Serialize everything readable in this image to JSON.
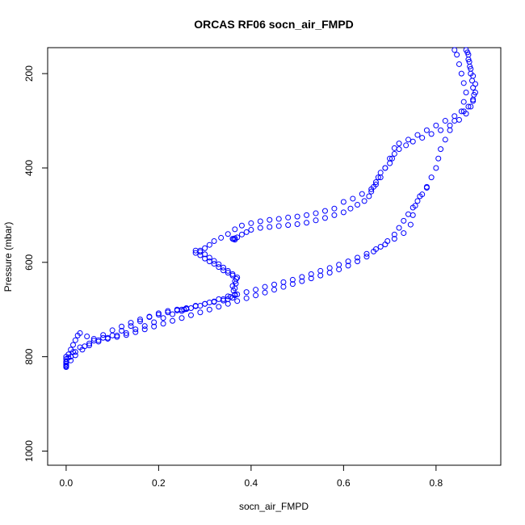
{
  "chart_data": {
    "type": "scatter",
    "title": "ORCAS RF06 socn_air_FMPD",
    "xlabel": "socn_air_FMPD",
    "ylabel": "Pressure (mbar)",
    "xlim": [
      -0.04,
      0.94
    ],
    "ylim": [
      1030,
      145
    ],
    "y_reversed": true,
    "x_ticks": [
      0.0,
      0.2,
      0.4,
      0.6,
      0.8
    ],
    "x_tick_labels": [
      "0.0",
      "0.2",
      "0.4",
      "0.6",
      "0.8"
    ],
    "y_ticks": [
      200,
      400,
      600,
      800,
      1000
    ],
    "y_tick_labels": [
      "200",
      "400",
      "600",
      "800",
      "1000"
    ],
    "grid": false,
    "marker": "open-circle",
    "color": "#0000ff",
    "series": [
      {
        "points": [
          [
            0.0,
            820
          ],
          [
            0.0,
            815
          ],
          [
            0.0,
            810
          ],
          [
            0.0,
            805
          ],
          [
            0.0,
            800
          ],
          [
            0.005,
            795
          ],
          [
            0.01,
            785
          ],
          [
            0.015,
            775
          ],
          [
            0.02,
            765
          ],
          [
            0.025,
            755
          ],
          [
            0.03,
            750
          ],
          [
            0.045,
            757
          ],
          [
            0.06,
            762
          ],
          [
            0.08,
            760
          ],
          [
            0.1,
            755
          ],
          [
            0.12,
            745
          ],
          [
            0.14,
            735
          ],
          [
            0.16,
            725
          ],
          [
            0.18,
            715
          ],
          [
            0.2,
            708
          ],
          [
            0.22,
            703
          ],
          [
            0.24,
            700
          ],
          [
            0.26,
            699
          ],
          [
            0.28,
            693
          ],
          [
            0.3,
            688
          ],
          [
            0.32,
            683
          ],
          [
            0.34,
            678
          ],
          [
            0.355,
            673
          ],
          [
            0.365,
            668
          ],
          [
            0.365,
            655
          ],
          [
            0.367,
            645
          ],
          [
            0.368,
            635
          ],
          [
            0.36,
            628
          ],
          [
            0.35,
            622
          ],
          [
            0.34,
            617
          ],
          [
            0.33,
            610
          ],
          [
            0.32,
            603
          ],
          [
            0.31,
            598
          ],
          [
            0.3,
            592
          ],
          [
            0.29,
            585
          ],
          [
            0.28,
            580
          ],
          [
            0.29,
            575
          ],
          [
            0.3,
            570
          ],
          [
            0.31,
            563
          ],
          [
            0.32,
            555
          ],
          [
            0.335,
            548
          ],
          [
            0.35,
            540
          ],
          [
            0.365,
            530
          ],
          [
            0.38,
            522
          ],
          [
            0.4,
            517
          ],
          [
            0.42,
            513
          ],
          [
            0.44,
            510
          ],
          [
            0.46,
            508
          ],
          [
            0.48,
            505
          ],
          [
            0.5,
            503
          ],
          [
            0.52,
            500
          ],
          [
            0.54,
            496
          ],
          [
            0.56,
            491
          ],
          [
            0.58,
            486
          ],
          [
            0.6,
            472
          ],
          [
            0.62,
            465
          ],
          [
            0.64,
            455
          ],
          [
            0.66,
            445
          ],
          [
            0.67,
            435
          ],
          [
            0.68,
            420
          ],
          [
            0.69,
            400
          ],
          [
            0.7,
            380
          ],
          [
            0.71,
            358
          ],
          [
            0.72,
            348
          ],
          [
            0.74,
            340
          ],
          [
            0.76,
            330
          ],
          [
            0.78,
            320
          ],
          [
            0.8,
            310
          ],
          [
            0.82,
            300
          ],
          [
            0.84,
            290
          ],
          [
            0.86,
            280
          ],
          [
            0.87,
            270
          ],
          [
            0.88,
            255
          ],
          [
            0.885,
            240
          ],
          [
            0.885,
            222
          ],
          [
            0.88,
            205
          ],
          [
            0.875,
            190
          ],
          [
            0.872,
            175
          ],
          [
            0.87,
            160
          ],
          [
            0.865,
            150
          ]
        ]
      },
      {
        "points": [
          [
            0.0,
            822
          ],
          [
            0.0,
            812
          ],
          [
            0.005,
            802
          ],
          [
            0.015,
            790
          ],
          [
            0.03,
            780
          ],
          [
            0.05,
            772
          ],
          [
            0.07,
            765
          ],
          [
            0.09,
            760
          ],
          [
            0.11,
            755
          ],
          [
            0.13,
            750
          ],
          [
            0.15,
            742
          ],
          [
            0.17,
            735
          ],
          [
            0.19,
            727
          ],
          [
            0.21,
            718
          ],
          [
            0.23,
            710
          ],
          [
            0.25,
            703
          ],
          [
            0.27,
            697
          ],
          [
            0.29,
            692
          ],
          [
            0.31,
            685
          ],
          [
            0.33,
            678
          ],
          [
            0.35,
            672
          ],
          [
            0.37,
            668
          ],
          [
            0.39,
            663
          ],
          [
            0.41,
            658
          ],
          [
            0.43,
            652
          ],
          [
            0.45,
            647
          ],
          [
            0.47,
            642
          ],
          [
            0.49,
            637
          ],
          [
            0.51,
            631
          ],
          [
            0.53,
            625
          ],
          [
            0.55,
            618
          ],
          [
            0.57,
            612
          ],
          [
            0.59,
            605
          ],
          [
            0.61,
            598
          ],
          [
            0.63,
            590
          ],
          [
            0.65,
            582
          ],
          [
            0.67,
            572
          ],
          [
            0.69,
            562
          ],
          [
            0.71,
            550
          ],
          [
            0.73,
            538
          ],
          [
            0.745,
            520
          ],
          [
            0.75,
            500
          ],
          [
            0.755,
            480
          ],
          [
            0.765,
            460
          ],
          [
            0.78,
            440
          ],
          [
            0.79,
            420
          ],
          [
            0.8,
            400
          ],
          [
            0.805,
            380
          ],
          [
            0.81,
            360
          ],
          [
            0.82,
            340
          ],
          [
            0.83,
            320
          ],
          [
            0.84,
            300
          ],
          [
            0.855,
            280
          ],
          [
            0.86,
            260
          ],
          [
            0.865,
            240
          ],
          [
            0.86,
            220
          ],
          [
            0.855,
            200
          ],
          [
            0.85,
            180
          ],
          [
            0.845,
            160
          ],
          [
            0.84,
            150
          ]
        ]
      },
      {
        "points": [
          [
            0.0,
            818
          ],
          [
            0.01,
            808
          ],
          [
            0.02,
            797
          ],
          [
            0.035,
            785
          ],
          [
            0.05,
            776
          ],
          [
            0.07,
            768
          ],
          [
            0.09,
            762
          ],
          [
            0.11,
            758
          ],
          [
            0.13,
            754
          ],
          [
            0.15,
            748
          ],
          [
            0.17,
            742
          ],
          [
            0.19,
            736
          ],
          [
            0.21,
            730
          ],
          [
            0.23,
            724
          ],
          [
            0.25,
            718
          ],
          [
            0.27,
            712
          ],
          [
            0.29,
            706
          ],
          [
            0.31,
            700
          ],
          [
            0.33,
            694
          ],
          [
            0.35,
            688
          ],
          [
            0.37,
            682
          ],
          [
            0.39,
            676
          ],
          [
            0.41,
            670
          ],
          [
            0.43,
            664
          ],
          [
            0.45,
            658
          ],
          [
            0.47,
            652
          ],
          [
            0.49,
            646
          ],
          [
            0.51,
            640
          ],
          [
            0.53,
            634
          ],
          [
            0.55,
            628
          ],
          [
            0.57,
            622
          ],
          [
            0.59,
            615
          ],
          [
            0.61,
            607
          ],
          [
            0.63,
            598
          ],
          [
            0.65,
            588
          ],
          [
            0.665,
            577
          ],
          [
            0.68,
            567
          ],
          [
            0.695,
            555
          ],
          [
            0.71,
            541
          ],
          [
            0.72,
            527
          ],
          [
            0.73,
            512
          ],
          [
            0.74,
            498
          ],
          [
            0.75,
            484
          ],
          [
            0.76,
            470
          ],
          [
            0.77,
            456
          ],
          [
            0.78,
            442
          ]
        ]
      },
      {
        "points": [
          [
            0.28,
            575
          ],
          [
            0.29,
            578
          ],
          [
            0.3,
            583
          ],
          [
            0.31,
            590
          ],
          [
            0.32,
            597
          ],
          [
            0.33,
            604
          ],
          [
            0.34,
            611
          ],
          [
            0.35,
            618
          ],
          [
            0.36,
            625
          ],
          [
            0.37,
            632
          ],
          [
            0.365,
            640
          ],
          [
            0.36,
            650
          ],
          [
            0.362,
            660
          ],
          [
            0.365,
            670
          ],
          [
            0.36,
            675
          ],
          [
            0.35,
            678
          ],
          [
            0.34,
            681
          ],
          [
            0.32,
            684
          ],
          [
            0.3,
            688
          ],
          [
            0.28,
            692
          ],
          [
            0.26,
            697
          ],
          [
            0.24,
            702
          ],
          [
            0.22,
            706
          ],
          [
            0.2,
            711
          ],
          [
            0.18,
            716
          ],
          [
            0.16,
            721
          ],
          [
            0.14,
            728
          ],
          [
            0.12,
            736
          ],
          [
            0.1,
            744
          ],
          [
            0.08,
            754
          ],
          [
            0.06,
            766
          ],
          [
            0.04,
            778
          ],
          [
            0.02,
            790
          ],
          [
            0.01,
            800
          ]
        ]
      },
      {
        "points": [
          [
            0.36,
            550
          ],
          [
            0.365,
            549
          ],
          [
            0.37,
            547
          ],
          [
            0.38,
            541
          ],
          [
            0.39,
            536
          ],
          [
            0.4,
            531
          ],
          [
            0.42,
            527
          ],
          [
            0.44,
            525
          ],
          [
            0.46,
            523
          ],
          [
            0.48,
            521
          ],
          [
            0.5,
            519
          ],
          [
            0.52,
            516
          ],
          [
            0.54,
            511
          ],
          [
            0.56,
            506
          ],
          [
            0.58,
            500
          ],
          [
            0.6,
            494
          ],
          [
            0.615,
            486
          ],
          [
            0.63,
            478
          ],
          [
            0.645,
            470
          ],
          [
            0.655,
            460
          ],
          [
            0.66,
            450
          ],
          [
            0.665,
            440
          ],
          [
            0.67,
            430
          ],
          [
            0.675,
            420
          ],
          [
            0.68,
            410
          ],
          [
            0.69,
            400
          ],
          [
            0.7,
            390
          ],
          [
            0.705,
            380
          ],
          [
            0.71,
            370
          ],
          [
            0.72,
            360
          ],
          [
            0.735,
            352
          ],
          [
            0.75,
            344
          ],
          [
            0.77,
            336
          ],
          [
            0.79,
            328
          ],
          [
            0.81,
            320
          ],
          [
            0.83,
            310
          ],
          [
            0.85,
            298
          ],
          [
            0.865,
            285
          ],
          [
            0.875,
            270
          ],
          [
            0.88,
            258
          ],
          [
            0.882,
            245
          ],
          [
            0.88,
            230
          ],
          [
            0.878,
            215
          ],
          [
            0.875,
            200
          ],
          [
            0.873,
            185
          ],
          [
            0.87,
            170
          ],
          [
            0.868,
            155
          ]
        ]
      },
      {
        "points": [
          [
            0.25,
            700
          ],
          [
            0.255,
            700
          ],
          [
            0.26,
            699
          ],
          [
            0.365,
            552
          ],
          [
            0.362,
            551
          ]
        ]
      }
    ]
  }
}
